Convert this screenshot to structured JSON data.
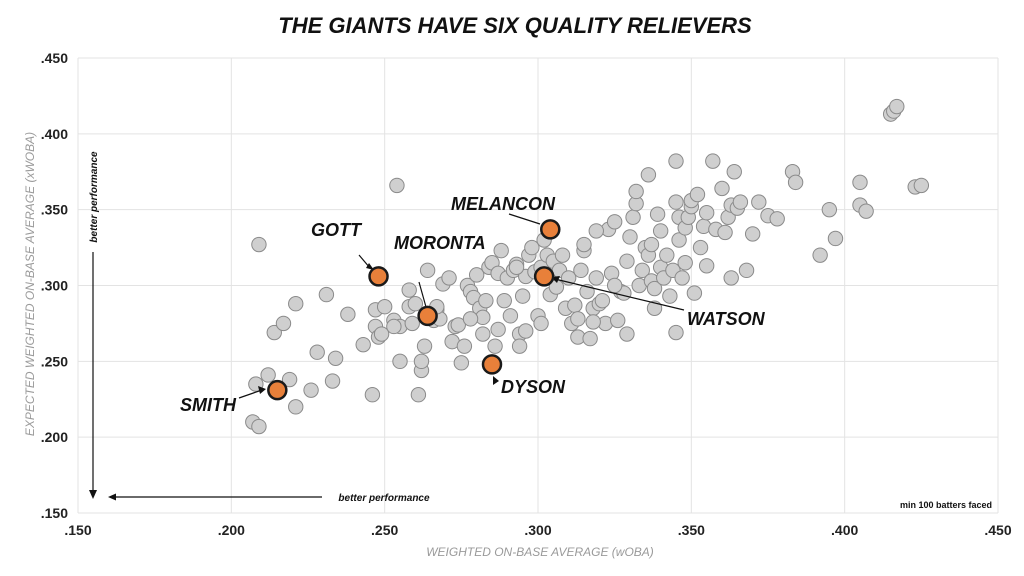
{
  "chart_data": {
    "type": "scatter",
    "title": "THE GIANTS HAVE SIX QUALITY RELIEVERS",
    "xlabel": "WEIGHTED ON-BASE AVERAGE (wOBA)",
    "ylabel": "EXPECTED WEIGHTED ON-BASE AVERAGE (xWOBA)",
    "xlim": [
      0.15,
      0.45
    ],
    "ylim": [
      0.15,
      0.45
    ],
    "x_ticks": [
      ".150",
      ".200",
      ".250",
      ".300",
      ".350",
      ".400",
      ".450"
    ],
    "y_ticks": [
      ".150",
      ".200",
      ".250",
      ".300",
      ".350",
      ".400",
      ".450"
    ],
    "grid": true,
    "colors": {
      "background_points": "#cfcfcf",
      "background_stroke": "#8a8a8a",
      "highlight": "#e8803a",
      "highlight_stroke": "#1a1a1a"
    },
    "notes": {
      "y_better": "better performance",
      "x_better": "better performance",
      "min": "min 100 batters faced"
    },
    "highlighted": [
      {
        "name": "MELANCON",
        "x": 0.304,
        "y": 0.337
      },
      {
        "name": "GOTT",
        "x": 0.248,
        "y": 0.306
      },
      {
        "name": "MORONTA",
        "x": 0.264,
        "y": 0.28
      },
      {
        "name": "WATSON",
        "x": 0.302,
        "y": 0.306
      },
      {
        "name": "DYSON",
        "x": 0.285,
        "y": 0.248
      },
      {
        "name": "SMITH",
        "x": 0.215,
        "y": 0.231
      }
    ],
    "points": [
      [
        0.209,
        0.327
      ],
      [
        0.212,
        0.241
      ],
      [
        0.214,
        0.269
      ],
      [
        0.217,
        0.275
      ],
      [
        0.219,
        0.238
      ],
      [
        0.221,
        0.22
      ],
      [
        0.221,
        0.288
      ],
      [
        0.208,
        0.235
      ],
      [
        0.207,
        0.21
      ],
      [
        0.209,
        0.207
      ],
      [
        0.226,
        0.231
      ],
      [
        0.228,
        0.256
      ],
      [
        0.231,
        0.294
      ],
      [
        0.233,
        0.237
      ],
      [
        0.234,
        0.252
      ],
      [
        0.238,
        0.281
      ],
      [
        0.243,
        0.261
      ],
      [
        0.246,
        0.228
      ],
      [
        0.247,
        0.284
      ],
      [
        0.247,
        0.273
      ],
      [
        0.248,
        0.266
      ],
      [
        0.249,
        0.268
      ],
      [
        0.25,
        0.286
      ],
      [
        0.253,
        0.277
      ],
      [
        0.254,
        0.366
      ],
      [
        0.255,
        0.25
      ],
      [
        0.255,
        0.273
      ],
      [
        0.258,
        0.286
      ],
      [
        0.259,
        0.275
      ],
      [
        0.26,
        0.288
      ],
      [
        0.261,
        0.228
      ],
      [
        0.262,
        0.244
      ],
      [
        0.262,
        0.25
      ],
      [
        0.263,
        0.26
      ],
      [
        0.264,
        0.31
      ],
      [
        0.265,
        0.281
      ],
      [
        0.266,
        0.277
      ],
      [
        0.267,
        0.284
      ],
      [
        0.268,
        0.278
      ],
      [
        0.269,
        0.301
      ],
      [
        0.271,
        0.305
      ],
      [
        0.272,
        0.263
      ],
      [
        0.273,
        0.273
      ],
      [
        0.274,
        0.274
      ],
      [
        0.275,
        0.249
      ],
      [
        0.276,
        0.26
      ],
      [
        0.277,
        0.3
      ],
      [
        0.278,
        0.296
      ],
      [
        0.279,
        0.292
      ],
      [
        0.28,
        0.307
      ],
      [
        0.281,
        0.285
      ],
      [
        0.282,
        0.279
      ],
      [
        0.283,
        0.29
      ],
      [
        0.284,
        0.312
      ],
      [
        0.285,
        0.315
      ],
      [
        0.286,
        0.26
      ],
      [
        0.287,
        0.271
      ],
      [
        0.287,
        0.308
      ],
      [
        0.288,
        0.323
      ],
      [
        0.289,
        0.29
      ],
      [
        0.29,
        0.305
      ],
      [
        0.291,
        0.28
      ],
      [
        0.292,
        0.31
      ],
      [
        0.293,
        0.314
      ],
      [
        0.294,
        0.268
      ],
      [
        0.294,
        0.26
      ],
      [
        0.295,
        0.293
      ],
      [
        0.296,
        0.306
      ],
      [
        0.297,
        0.32
      ],
      [
        0.298,
        0.325
      ],
      [
        0.299,
        0.309
      ],
      [
        0.3,
        0.28
      ],
      [
        0.301,
        0.275
      ],
      [
        0.301,
        0.312
      ],
      [
        0.302,
        0.33
      ],
      [
        0.303,
        0.32
      ],
      [
        0.304,
        0.294
      ],
      [
        0.305,
        0.316
      ],
      [
        0.306,
        0.299
      ],
      [
        0.307,
        0.31
      ],
      [
        0.308,
        0.32
      ],
      [
        0.309,
        0.285
      ],
      [
        0.31,
        0.305
      ],
      [
        0.311,
        0.275
      ],
      [
        0.312,
        0.287
      ],
      [
        0.313,
        0.278
      ],
      [
        0.313,
        0.266
      ],
      [
        0.314,
        0.31
      ],
      [
        0.315,
        0.323
      ],
      [
        0.315,
        0.327
      ],
      [
        0.316,
        0.296
      ],
      [
        0.317,
        0.265
      ],
      [
        0.318,
        0.285
      ],
      [
        0.319,
        0.305
      ],
      [
        0.32,
        0.288
      ],
      [
        0.321,
        0.29
      ],
      [
        0.322,
        0.275
      ],
      [
        0.323,
        0.337
      ],
      [
        0.324,
        0.308
      ],
      [
        0.325,
        0.342
      ],
      [
        0.326,
        0.277
      ],
      [
        0.327,
        0.296
      ],
      [
        0.328,
        0.295
      ],
      [
        0.329,
        0.268
      ],
      [
        0.329,
        0.316
      ],
      [
        0.33,
        0.332
      ],
      [
        0.331,
        0.345
      ],
      [
        0.332,
        0.354
      ],
      [
        0.332,
        0.362
      ],
      [
        0.333,
        0.3
      ],
      [
        0.334,
        0.31
      ],
      [
        0.335,
        0.325
      ],
      [
        0.336,
        0.373
      ],
      [
        0.336,
        0.32
      ],
      [
        0.337,
        0.303
      ],
      [
        0.338,
        0.285
      ],
      [
        0.338,
        0.298
      ],
      [
        0.339,
        0.347
      ],
      [
        0.34,
        0.336
      ],
      [
        0.34,
        0.312
      ],
      [
        0.341,
        0.305
      ],
      [
        0.342,
        0.32
      ],
      [
        0.343,
        0.293
      ],
      [
        0.344,
        0.31
      ],
      [
        0.345,
        0.382
      ],
      [
        0.345,
        0.355
      ],
      [
        0.346,
        0.345
      ],
      [
        0.346,
        0.33
      ],
      [
        0.347,
        0.305
      ],
      [
        0.348,
        0.315
      ],
      [
        0.348,
        0.338
      ],
      [
        0.349,
        0.345
      ],
      [
        0.35,
        0.352
      ],
      [
        0.35,
        0.356
      ],
      [
        0.351,
        0.295
      ],
      [
        0.352,
        0.36
      ],
      [
        0.353,
        0.325
      ],
      [
        0.354,
        0.339
      ],
      [
        0.355,
        0.348
      ],
      [
        0.355,
        0.313
      ],
      [
        0.357,
        0.382
      ],
      [
        0.358,
        0.337
      ],
      [
        0.36,
        0.364
      ],
      [
        0.361,
        0.335
      ],
      [
        0.362,
        0.345
      ],
      [
        0.363,
        0.353
      ],
      [
        0.363,
        0.305
      ],
      [
        0.364,
        0.375
      ],
      [
        0.365,
        0.351
      ],
      [
        0.366,
        0.355
      ],
      [
        0.368,
        0.31
      ],
      [
        0.37,
        0.334
      ],
      [
        0.372,
        0.355
      ],
      [
        0.375,
        0.346
      ],
      [
        0.378,
        0.344
      ],
      [
        0.383,
        0.375
      ],
      [
        0.384,
        0.368
      ],
      [
        0.392,
        0.32
      ],
      [
        0.395,
        0.35
      ],
      [
        0.397,
        0.331
      ],
      [
        0.405,
        0.368
      ],
      [
        0.405,
        0.353
      ],
      [
        0.407,
        0.349
      ],
      [
        0.415,
        0.413
      ],
      [
        0.416,
        0.415
      ],
      [
        0.417,
        0.418
      ],
      [
        0.423,
        0.365
      ],
      [
        0.425,
        0.366
      ],
      [
        0.345,
        0.269
      ],
      [
        0.337,
        0.327
      ],
      [
        0.325,
        0.3
      ],
      [
        0.319,
        0.336
      ],
      [
        0.318,
        0.276
      ],
      [
        0.296,
        0.27
      ],
      [
        0.293,
        0.312
      ],
      [
        0.282,
        0.268
      ],
      [
        0.278,
        0.278
      ],
      [
        0.267,
        0.286
      ],
      [
        0.253,
        0.273
      ],
      [
        0.258,
        0.297
      ]
    ]
  }
}
